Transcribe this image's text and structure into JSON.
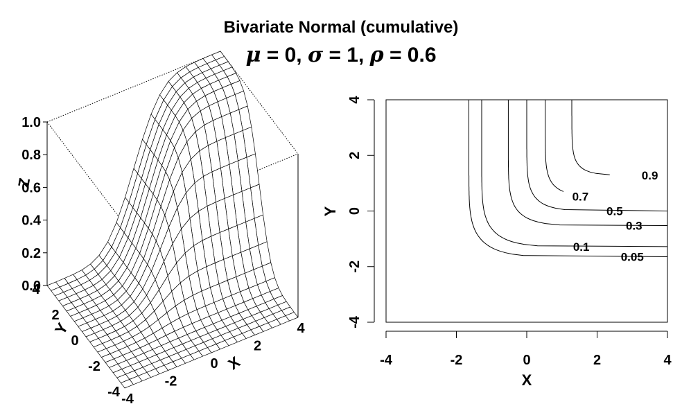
{
  "title": "Bivariate Normal (cumulative)",
  "subtitle": {
    "mu_symbol": "μ",
    "mu_value": " = 0,  ",
    "sigma_symbol": "σ",
    "sigma_value": " = 1,  ",
    "rho_symbol": "ρ",
    "rho_value": " = 0.6"
  },
  "chart_data": [
    {
      "type": "surface",
      "function": "bivariate normal CDF",
      "params": {
        "mu": 0,
        "sigma": 1,
        "rho": 0.6
      },
      "xlabel": "X",
      "ylabel": "Y",
      "zlabel": "Z",
      "xlim": [
        -4,
        4
      ],
      "ylim": [
        -4,
        4
      ],
      "zlim": [
        0,
        1
      ],
      "x_ticks": [
        "-4",
        "-2",
        "0",
        "2",
        "4"
      ],
      "y_ticks": [
        "-4",
        "-2",
        "0",
        "2",
        "4"
      ],
      "z_ticks": [
        "0.0",
        "0.2",
        "0.4",
        "0.6",
        "0.8",
        "1.0"
      ],
      "grid_resolution": 21,
      "colors": {
        "line": "#000000",
        "fill": "#ffffff"
      }
    },
    {
      "type": "contour",
      "function": "bivariate normal CDF",
      "params": {
        "mu": 0,
        "sigma": 1,
        "rho": 0.6
      },
      "xlabel": "X",
      "ylabel": "Y",
      "xlim": [
        -4,
        4
      ],
      "ylim": [
        -4,
        4
      ],
      "x_ticks": [
        "-4",
        "-2",
        "0",
        "2",
        "4"
      ],
      "y_ticks": [
        "-4",
        "-2",
        "0",
        "2",
        "4"
      ],
      "levels": [
        0.05,
        0.1,
        0.3,
        0.5,
        0.7,
        0.9
      ],
      "level_labels": [
        "0.05",
        "0.1",
        "0.3",
        "0.5",
        "0.7",
        "0.9"
      ],
      "colors": {
        "line": "#000000"
      }
    }
  ]
}
